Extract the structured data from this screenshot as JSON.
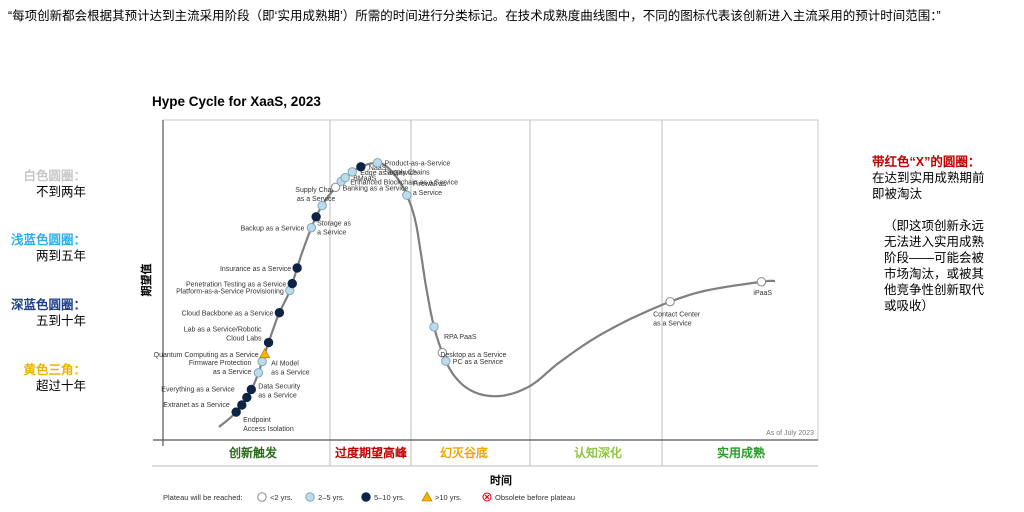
{
  "intro_text": "“每项创新都会根据其预计达到主流采用阶段（即‘实用成熟期’）所需的时间进行分类标记。在技术成熟度曲线图中，不同的图标代表该创新进入主流采用的预计时间范围：”",
  "left_legend": [
    {
      "heading": "白色圆圈：",
      "desc": "不到两年",
      "color": "#c8c8c8"
    },
    {
      "heading": "浅蓝色圆圈：",
      "desc": "两到五年",
      "color": "#2fb0e8"
    },
    {
      "heading": "深蓝色圆圈：",
      "desc": "五到十年",
      "color": "#1f3f8a"
    },
    {
      "heading": "黄色三角：",
      "desc": "超过十年",
      "color": "#f0b400"
    }
  ],
  "right_note": {
    "heading": "带红色“X”的圆圈：",
    "line1": "在达到实用成熟期前即被淘汰",
    "line2": "（即这项创新永远无法进入实用成熟阶段——可能会被市场淘汰，或被其他竞争性创新取代或吸收）"
  },
  "chart_data": {
    "type": "scatter",
    "title": "Hype Cycle for XaaS, 2023",
    "ylabel": "期望值",
    "xlabel": "时间",
    "note": "As of July 2023",
    "phases": [
      {
        "name": "创新触发",
        "color": "#2e6b1f"
      },
      {
        "name": "过度期望高峰",
        "color": "#c00000"
      },
      {
        "name": "幻灭谷底",
        "color": "#f0a500"
      },
      {
        "name": "认知深化",
        "color": "#8dc63f"
      },
      {
        "name": "实用成熟",
        "color": "#2e9b2e"
      }
    ],
    "legend": {
      "prefix": "Plateau will be reached:",
      "items": [
        {
          "label": "<2 yrs.",
          "marker": "white"
        },
        {
          "label": "2–5 yrs.",
          "marker": "light"
        },
        {
          "label": "5–10 yrs.",
          "marker": "dark"
        },
        {
          "label": ">10 yrs.",
          "marker": "triangle"
        },
        {
          "label": "Obsolete before plateau",
          "marker": "obsolete"
        }
      ]
    },
    "points": [
      {
        "label": "Endpoint Access Isolation",
        "t": 0.025,
        "marker": "dark"
      },
      {
        "label": "Extranet as a Service",
        "t": 0.035,
        "marker": "dark"
      },
      {
        "label": "Everything as a Service",
        "t": 0.045,
        "marker": "dark"
      },
      {
        "label": "Data Security as a Service",
        "t": 0.055,
        "marker": "dark"
      },
      {
        "label": "Firmware Protection as a Service",
        "t": 0.075,
        "marker": "light"
      },
      {
        "label": "AI Model as a Service",
        "t": 0.088,
        "marker": "light"
      },
      {
        "label": "Quantum Computing as a Service",
        "t": 0.097,
        "marker": "triangle"
      },
      {
        "label": "Lab as a Service/Robotic Cloud Labs",
        "t": 0.11,
        "marker": "dark"
      },
      {
        "label": "Cloud Backbone as a Service",
        "t": 0.145,
        "marker": "dark"
      },
      {
        "label": "Platform-as-a-Service Provisioning",
        "t": 0.172,
        "marker": "light"
      },
      {
        "label": "Penetration Testing as a Service",
        "t": 0.18,
        "marker": "dark"
      },
      {
        "label": "Insurance as a Service",
        "t": 0.198,
        "marker": "dark"
      },
      {
        "label": "Backup as a Service",
        "t": 0.245,
        "marker": "light"
      },
      {
        "label": "Supply Chain as a Service",
        "t": 0.258,
        "marker": "dark"
      },
      {
        "label": "Storage as a Service",
        "t": 0.272,
        "marker": "light"
      },
      {
        "label": "Banking as a Service",
        "t": 0.297,
        "marker": "white"
      },
      {
        "label": "Enhanced Blockchain as a Service",
        "t": 0.306,
        "marker": "light"
      },
      {
        "label": "BMaaS",
        "t": 0.312,
        "marker": "light"
      },
      {
        "label": "Edge as a Service",
        "t": 0.322,
        "marker": "light"
      },
      {
        "label": "NaaS",
        "t": 0.333,
        "marker": "dark"
      },
      {
        "label": "Product-as-a-Service Supply Chains",
        "t": 0.352,
        "marker": "light"
      },
      {
        "label": "Firewall as a Service",
        "t": 0.402,
        "marker": "light"
      },
      {
        "label": "RPA PaaS",
        "t": 0.55,
        "marker": "light"
      },
      {
        "label": "PC as a Service",
        "t": 0.59,
        "marker": "light"
      },
      {
        "label": "Desktop as a Service",
        "t": 0.58,
        "marker": "white"
      },
      {
        "label": "Contact Center as a Service",
        "t": 0.882,
        "marker": "white"
      },
      {
        "label": "iPaaS",
        "t": 0.985,
        "marker": "white"
      }
    ]
  }
}
